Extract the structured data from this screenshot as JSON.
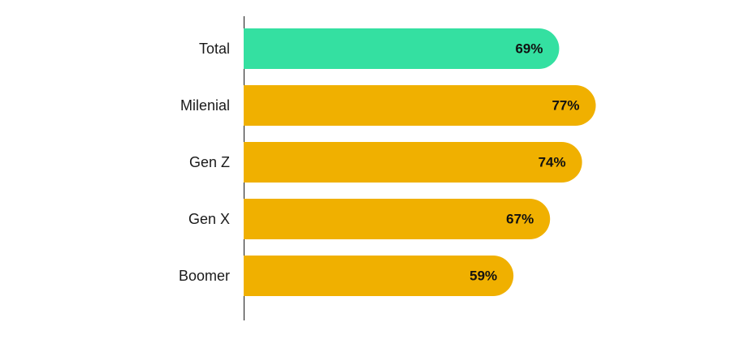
{
  "chart_data": {
    "type": "bar",
    "orientation": "horizontal",
    "categories": [
      "Total",
      "Milenial",
      "Gen Z",
      "Gen X",
      "Boomer"
    ],
    "values": [
      69,
      77,
      74,
      67,
      59
    ],
    "value_labels": [
      "69%",
      "77%",
      "74%",
      "67%",
      "59%"
    ],
    "unit": "%",
    "title": "",
    "xlabel": "",
    "ylabel": "",
    "xlim": [
      0,
      100
    ],
    "grid": false,
    "legend": "none",
    "bar_colors": [
      "#34e0a1",
      "#f0b000",
      "#f0b000",
      "#f0b000",
      "#f0b000"
    ]
  }
}
